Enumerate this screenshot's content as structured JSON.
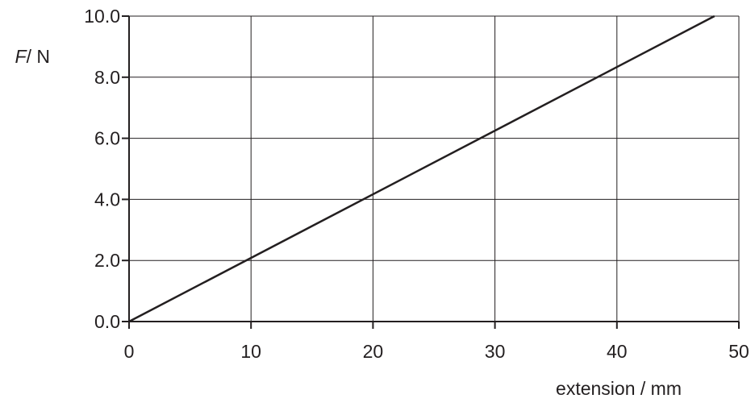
{
  "chart_data": {
    "type": "line",
    "title": "",
    "ylabel_symbol": "F",
    "ylabel_unit": "/ N",
    "xlabel": "extension / mm",
    "xlim": [
      0,
      50
    ],
    "ylim": [
      0,
      10
    ],
    "x_ticks": [
      0,
      10,
      20,
      30,
      40,
      50
    ],
    "x_tick_labels": [
      "0",
      "10",
      "20",
      "30",
      "40",
      "50"
    ],
    "y_ticks": [
      0,
      2,
      4,
      6,
      8,
      10
    ],
    "y_tick_labels": [
      "0.0",
      "2.0",
      "4.0",
      "6.0",
      "8.0",
      "10.0"
    ],
    "grid": true,
    "series": [
      {
        "x": [
          0,
          48
        ],
        "y": [
          0,
          10
        ]
      }
    ]
  },
  "colors": {
    "ink": "#231f20",
    "background": "#ffffff"
  }
}
